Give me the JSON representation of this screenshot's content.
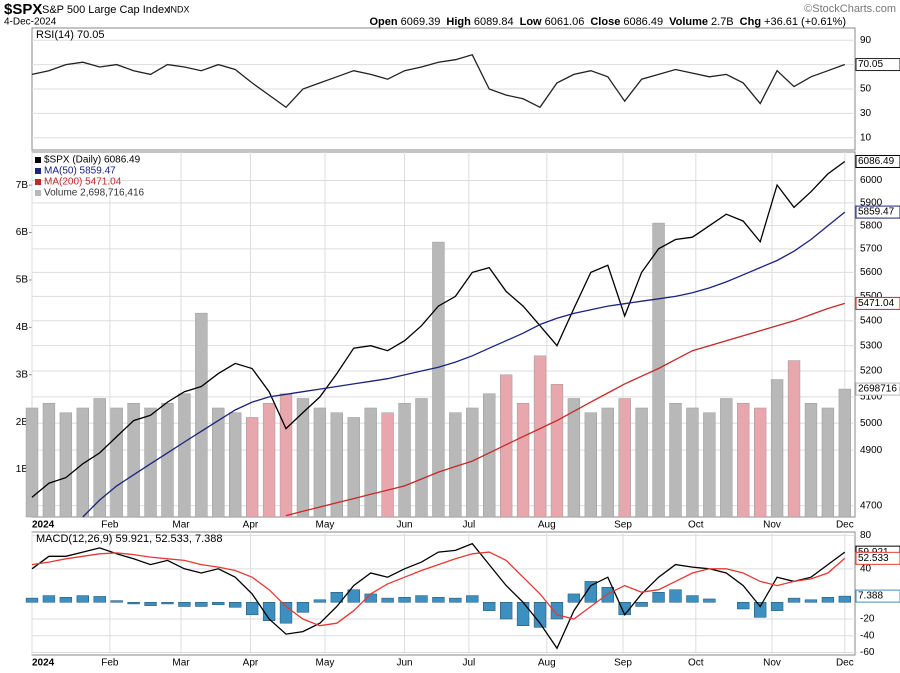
{
  "header": {
    "symbol": "$SPX",
    "name": "S&P 500 Large Cap Index",
    "exchange": "INDX",
    "date": "4-Dec-2024",
    "source": "©StockCharts.com",
    "quote": [
      {
        "label": "Open",
        "value": "6069.39"
      },
      {
        "label": "High",
        "value": "6089.84"
      },
      {
        "label": "Low",
        "value": "6061.06"
      },
      {
        "label": "Close",
        "value": "6086.49"
      },
      {
        "label": "Volume",
        "value": "2.7B"
      },
      {
        "label": "Chg",
        "value": "+36.61 (+0.61%)"
      }
    ]
  },
  "chart_data": [
    {
      "type": "line",
      "title": "RSI(14) 70.05",
      "ylim": [
        0,
        100
      ],
      "yticks": [
        10,
        30,
        50,
        70,
        90
      ],
      "xlim": [
        0,
        48.6
      ],
      "x": [
        0,
        1,
        2,
        3,
        4,
        5,
        6,
        7,
        8,
        9,
        10,
        11,
        12,
        13,
        14,
        15,
        16,
        17,
        18,
        19,
        20,
        21,
        22,
        23,
        24,
        25,
        26,
        27,
        28,
        29,
        30,
        31,
        32,
        33,
        34,
        35,
        36,
        37,
        38,
        39,
        40,
        41,
        42,
        43,
        44,
        45,
        46,
        47,
        48
      ],
      "series": [
        {
          "type": "line",
          "color": "#222222",
          "last_label": "70.05",
          "values": [
            62,
            65,
            70,
            72,
            68,
            70,
            65,
            62,
            70,
            68,
            65,
            70,
            66,
            55,
            45,
            35,
            50,
            55,
            60,
            65,
            62,
            58,
            65,
            68,
            72,
            74,
            78,
            50,
            45,
            42,
            35,
            55,
            62,
            65,
            60,
            40,
            58,
            62,
            66,
            63,
            60,
            62,
            55,
            38,
            65,
            52,
            60,
            65,
            70.05
          ]
        }
      ]
    },
    {
      "type": "line",
      "log_scale": true,
      "ylim": [
        4660,
        6130
      ],
      "yticks": [
        4700,
        4900,
        5000,
        5100,
        5200,
        5300,
        5400,
        5500,
        5600,
        5700,
        5800,
        5900,
        6000
      ],
      "xlim": [
        0,
        48.6
      ],
      "y2lim": [
        0,
        7.7
      ],
      "y2ticks": [
        {
          "value": 1,
          "label": "1B"
        },
        {
          "value": 2,
          "label": "2B"
        },
        {
          "value": 3,
          "label": "3B"
        },
        {
          "value": 4,
          "label": "4B"
        },
        {
          "value": 5,
          "label": "5B"
        },
        {
          "value": 6,
          "label": "6B"
        },
        {
          "value": 7,
          "label": "7B"
        }
      ],
      "xticks": [
        {
          "value": 0,
          "label": "2024"
        },
        {
          "value": 4.6,
          "label": "Feb"
        },
        {
          "value": 8.8,
          "label": "Mar"
        },
        {
          "value": 12.9,
          "label": "Apr"
        },
        {
          "value": 17.3,
          "label": "May"
        },
        {
          "value": 22,
          "label": "Jun"
        },
        {
          "value": 25.8,
          "label": "Jul"
        },
        {
          "value": 30.4,
          "label": "Aug"
        },
        {
          "value": 34.9,
          "label": "Sep"
        },
        {
          "value": 39.2,
          "label": "Oct"
        },
        {
          "value": 43.7,
          "label": "Nov"
        },
        {
          "value": 48,
          "label": "Dec"
        }
      ],
      "x": [
        0,
        1,
        2,
        3,
        4,
        5,
        6,
        7,
        8,
        9,
        10,
        11,
        12,
        13,
        14,
        15,
        16,
        17,
        18,
        19,
        20,
        21,
        22,
        23,
        24,
        25,
        26,
        27,
        28,
        29,
        30,
        31,
        32,
        33,
        34,
        35,
        36,
        37,
        38,
        39,
        40,
        41,
        42,
        43,
        44,
        45,
        46,
        47,
        48
      ],
      "series": [
        {
          "type": "bar",
          "axis": "y2",
          "name": "Volume 2,698,716,416",
          "color": "#b8b8b8",
          "last_label": "2698716",
          "values": [
            2.3,
            2.4,
            2.2,
            2.3,
            2.5,
            2.3,
            2.4,
            2.3,
            2.4,
            2.6,
            4.3,
            2.3,
            2.2,
            2.1,
            2.4,
            2.6,
            2.5,
            2.3,
            2.2,
            2.1,
            2.3,
            2.2,
            2.4,
            2.5,
            5.8,
            2.2,
            2.3,
            2.6,
            3.0,
            2.4,
            3.4,
            2.8,
            2.5,
            2.2,
            2.3,
            2.5,
            2.3,
            6.2,
            2.4,
            2.3,
            2.2,
            2.5,
            2.4,
            2.3,
            2.9,
            3.3,
            2.4,
            2.3,
            2.698716416
          ]
        },
        {
          "type": "line",
          "name": "$SPX (Daily) 6086.49",
          "color": "#000000",
          "last_label": "6086.49",
          "values": [
            4730,
            4780,
            4800,
            4850,
            4890,
            4950,
            5010,
            5030,
            5080,
            5120,
            5140,
            5190,
            5230,
            5210,
            5120,
            4980,
            5040,
            5100,
            5190,
            5290,
            5300,
            5280,
            5320,
            5380,
            5460,
            5500,
            5600,
            5620,
            5520,
            5460,
            5380,
            5300,
            5450,
            5600,
            5630,
            5420,
            5600,
            5700,
            5740,
            5750,
            5800,
            5850,
            5820,
            5730,
            5980,
            5880,
            5950,
            6030,
            6086.49
          ]
        },
        {
          "type": "line",
          "name": "MA(50) 5859.47",
          "color": "#1a237e",
          "last_label": "5859.47",
          "values": [
            null,
            null,
            null,
            4660,
            4720,
            4770,
            4810,
            4850,
            4890,
            4930,
            4970,
            5010,
            5050,
            5080,
            5100,
            5110,
            5120,
            5130,
            5140,
            5150,
            5160,
            5170,
            5185,
            5200,
            5215,
            5235,
            5260,
            5290,
            5320,
            5350,
            5385,
            5410,
            5430,
            5445,
            5460,
            5470,
            5480,
            5490,
            5500,
            5515,
            5535,
            5560,
            5590,
            5620,
            5650,
            5690,
            5740,
            5800,
            5859.47
          ]
        },
        {
          "type": "line",
          "name": "MA(200) 5471.04",
          "color": "#c62828",
          "last_label": "5471.04",
          "values": [
            null,
            null,
            null,
            null,
            null,
            null,
            null,
            null,
            null,
            null,
            null,
            null,
            null,
            null,
            null,
            4665,
            4680,
            4695,
            4710,
            4725,
            4740,
            4755,
            4770,
            4795,
            4820,
            4840,
            4860,
            4890,
            4920,
            4950,
            4980,
            5010,
            5045,
            5080,
            5115,
            5150,
            5180,
            5210,
            5245,
            5280,
            5300,
            5320,
            5340,
            5360,
            5380,
            5400,
            5425,
            5450,
            5471.04
          ]
        }
      ]
    },
    {
      "type": "line",
      "title": "MACD(12,26,9) 59.921, 52.533, 7.388",
      "ylim": [
        -63,
        84
      ],
      "yticks": [
        -60,
        -40,
        -20,
        40,
        80
      ],
      "xlim": [
        0,
        48.6
      ],
      "xticks": [
        {
          "value": 0,
          "label": "2024"
        },
        {
          "value": 4.6,
          "label": "Feb"
        },
        {
          "value": 8.8,
          "label": "Mar"
        },
        {
          "value": 12.9,
          "label": "Apr"
        },
        {
          "value": 17.3,
          "label": "May"
        },
        {
          "value": 22,
          "label": "Jun"
        },
        {
          "value": 25.8,
          "label": "Jul"
        },
        {
          "value": 30.4,
          "label": "Aug"
        },
        {
          "value": 34.9,
          "label": "Sep"
        },
        {
          "value": 39.2,
          "label": "Oct"
        },
        {
          "value": 43.7,
          "label": "Nov"
        },
        {
          "value": 48,
          "label": "Dec"
        }
      ],
      "x": [
        0,
        1,
        2,
        3,
        4,
        5,
        6,
        7,
        8,
        9,
        10,
        11,
        12,
        13,
        14,
        15,
        16,
        17,
        18,
        19,
        20,
        21,
        22,
        23,
        24,
        25,
        26,
        27,
        28,
        29,
        30,
        31,
        32,
        33,
        34,
        35,
        36,
        37,
        38,
        39,
        40,
        41,
        42,
        43,
        44,
        45,
        46,
        47,
        48
      ],
      "series": [
        {
          "type": "bar",
          "color": "#3d8fbf",
          "last_label": "7.388",
          "values": [
            5,
            8,
            6,
            8,
            7,
            2,
            -2,
            -4,
            -2,
            -5,
            -5,
            -3,
            -6,
            -15,
            -22,
            -25,
            -12,
            3,
            12,
            15,
            10,
            5,
            6,
            8,
            6,
            5,
            8,
            -10,
            -20,
            -28,
            -30,
            -20,
            10,
            25,
            18,
            -15,
            -5,
            12,
            15,
            8,
            4,
            0,
            -8,
            -18,
            -10,
            5,
            3,
            6,
            7.388
          ]
        },
        {
          "type": "line",
          "color": "#000000",
          "last_label": "59.921",
          "values": [
            40,
            55,
            55,
            60,
            65,
            58,
            52,
            45,
            50,
            40,
            35,
            40,
            30,
            10,
            -20,
            -38,
            -35,
            -25,
            -5,
            20,
            35,
            30,
            40,
            48,
            60,
            62,
            70,
            45,
            20,
            0,
            -25,
            -55,
            -10,
            20,
            30,
            -15,
            10,
            30,
            45,
            42,
            40,
            35,
            20,
            -5,
            30,
            25,
            30,
            45,
            59.921
          ]
        },
        {
          "type": "line",
          "color": "#e53935",
          "last_label": "52.533",
          "values": [
            45,
            48,
            52,
            55,
            58,
            59,
            57,
            54,
            52,
            50,
            45,
            42,
            38,
            30,
            15,
            -5,
            -20,
            -28,
            -25,
            -10,
            10,
            22,
            30,
            38,
            45,
            52,
            58,
            60,
            50,
            30,
            10,
            -15,
            -20,
            -5,
            10,
            20,
            12,
            15,
            25,
            35,
            40,
            40,
            35,
            25,
            20,
            25,
            28,
            35,
            52.533
          ]
        }
      ]
    }
  ]
}
